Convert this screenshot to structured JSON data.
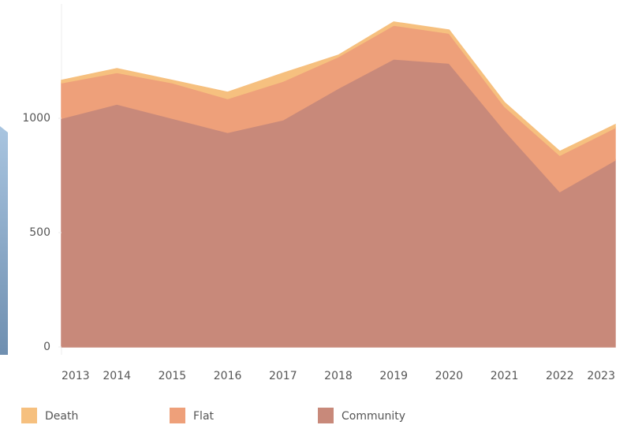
{
  "chart_data": {
    "type": "stacked_area",
    "categories": [
      "2013",
      "2014",
      "2015",
      "2016",
      "2017",
      "2018",
      "2019",
      "2020",
      "2021",
      "2022",
      "2023"
    ],
    "series": [
      {
        "name": "Death",
        "color": "#f6c07f",
        "values": [
          11,
          17,
          11,
          28,
          35,
          7,
          14,
          14,
          17,
          17,
          13
        ]
      },
      {
        "name": "Flat",
        "color": "#eea07a",
        "values": [
          155,
          138,
          155,
          148,
          169,
          138,
          148,
          131,
          104,
          159,
          142
        ]
      },
      {
        "name": "Community",
        "color": "#c8897a",
        "values": [
          1000,
          1062,
          1000,
          938,
          993,
          1131,
          1259,
          1241,
          948,
          679,
          817
        ]
      }
    ],
    "ylim": [
      0,
      1500
    ],
    "yticks": [
      0,
      500,
      1000
    ],
    "grid": false
  }
}
